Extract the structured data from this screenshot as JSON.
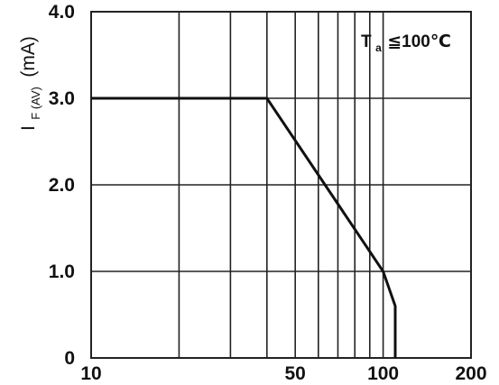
{
  "chart_data": {
    "type": "line",
    "title": "",
    "xlabel": "",
    "ylabel": {
      "symbol": "I",
      "subscript": "F (AV)",
      "unit": "(mA)"
    },
    "x_scale": "log",
    "xlim": [
      10,
      200
    ],
    "ylim": [
      0,
      4.0
    ],
    "x_tick_labels": [
      "10",
      "50",
      "100",
      "200"
    ],
    "x_tick_values": [
      10,
      50,
      100,
      200
    ],
    "x_gridlines": [
      10,
      20,
      30,
      40,
      50,
      60,
      70,
      80,
      90,
      100,
      200
    ],
    "y_tick_labels": [
      "0",
      "1.0",
      "2.0",
      "3.0",
      "4.0"
    ],
    "y_tick_values": [
      0,
      1,
      2,
      3,
      4
    ],
    "grid": true,
    "legend": "none",
    "annotation": {
      "symbol": "T",
      "subscript": "a",
      "text": "≦100℃"
    },
    "series": [
      {
        "x": [
          10,
          40,
          100,
          110,
          110
        ],
        "y": [
          3.0,
          3.0,
          1.0,
          0.6,
          0
        ]
      }
    ],
    "colors": {
      "line": "#111111",
      "grid": "#222222",
      "background": "#ffffff"
    }
  }
}
